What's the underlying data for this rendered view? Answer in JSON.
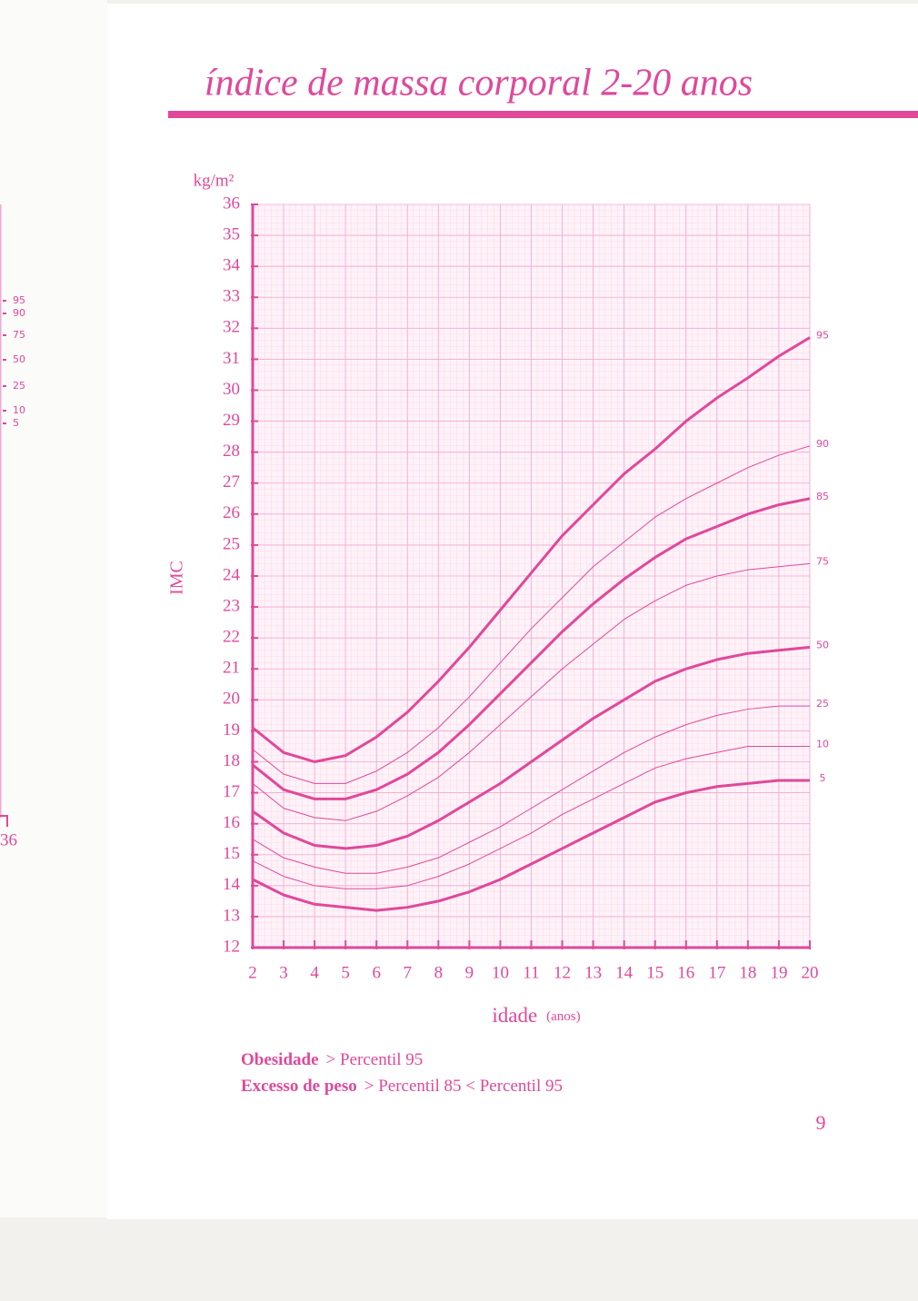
{
  "header": {
    "title": "índice de massa corporal 2-20 anos"
  },
  "left_page": {
    "labels": [
      "95",
      "90",
      "75",
      "50",
      "25",
      "10",
      "5"
    ],
    "number": "36"
  },
  "chart_data": {
    "type": "line",
    "y_unit": "kg/m²",
    "ylabel": "IMC",
    "xlabel": "idade",
    "x_unit": "(anos)",
    "x": [
      2,
      3,
      4,
      5,
      6,
      7,
      8,
      9,
      10,
      11,
      12,
      13,
      14,
      15,
      16,
      17,
      18,
      19,
      20
    ],
    "xlim": [
      2,
      20
    ],
    "xticks": [
      2,
      3,
      4,
      5,
      6,
      7,
      8,
      9,
      10,
      11,
      12,
      13,
      14,
      15,
      16,
      17,
      18,
      19,
      20
    ],
    "ylim": [
      12,
      36
    ],
    "yticks": [
      12,
      13,
      14,
      15,
      16,
      17,
      18,
      19,
      20,
      21,
      22,
      23,
      24,
      25,
      26,
      27,
      28,
      29,
      30,
      31,
      32,
      33,
      34,
      35,
      36
    ],
    "grid": true,
    "series": [
      {
        "name": "95",
        "color": "#e0489a",
        "width": 3,
        "values": [
          19.1,
          18.3,
          18.0,
          18.2,
          18.8,
          19.6,
          20.6,
          21.7,
          22.9,
          24.1,
          25.3,
          26.3,
          27.3,
          28.1,
          29.0,
          29.75,
          30.4,
          31.1,
          31.7
        ]
      },
      {
        "name": "90",
        "color": "#e0489a",
        "width": 1,
        "values": [
          18.4,
          17.6,
          17.3,
          17.3,
          17.7,
          18.3,
          19.1,
          20.1,
          21.2,
          22.3,
          23.3,
          24.3,
          25.1,
          25.9,
          26.5,
          27.0,
          27.5,
          27.9,
          28.2
        ]
      },
      {
        "name": "85",
        "color": "#e0489a",
        "width": 3,
        "values": [
          17.9,
          17.1,
          16.8,
          16.8,
          17.1,
          17.6,
          18.3,
          19.2,
          20.2,
          21.2,
          22.2,
          23.1,
          23.9,
          24.6,
          25.2,
          25.6,
          26.0,
          26.3,
          26.5
        ]
      },
      {
        "name": "75",
        "color": "#e0489a",
        "width": 1,
        "values": [
          17.3,
          16.5,
          16.2,
          16.1,
          16.4,
          16.9,
          17.5,
          18.3,
          19.2,
          20.1,
          21.0,
          21.8,
          22.6,
          23.2,
          23.7,
          24.0,
          24.2,
          24.3,
          24.4
        ]
      },
      {
        "name": "50",
        "color": "#e0489a",
        "width": 3,
        "values": [
          16.4,
          15.7,
          15.3,
          15.2,
          15.3,
          15.6,
          16.1,
          16.7,
          17.3,
          18.0,
          18.7,
          19.4,
          20.0,
          20.6,
          21.0,
          21.3,
          21.5,
          21.6,
          21.7
        ]
      },
      {
        "name": "25",
        "color": "#e0489a",
        "width": 1,
        "values": [
          15.5,
          14.9,
          14.6,
          14.4,
          14.4,
          14.6,
          14.9,
          15.4,
          15.9,
          16.5,
          17.1,
          17.7,
          18.3,
          18.8,
          19.2,
          19.5,
          19.7,
          19.8,
          19.8
        ]
      },
      {
        "name": "10",
        "color": "#e0489a",
        "width": 1,
        "values": [
          14.8,
          14.3,
          14.0,
          13.9,
          13.9,
          14.0,
          14.3,
          14.7,
          15.2,
          15.7,
          16.3,
          16.8,
          17.3,
          17.8,
          18.1,
          18.3,
          18.5,
          18.5,
          18.5
        ]
      },
      {
        "name": "5",
        "color": "#e0489a",
        "width": 3,
        "values": [
          14.2,
          13.7,
          13.4,
          13.3,
          13.2,
          13.3,
          13.5,
          13.8,
          14.2,
          14.7,
          15.2,
          15.7,
          16.2,
          16.7,
          17.0,
          17.2,
          17.3,
          17.4,
          17.4
        ]
      }
    ]
  },
  "notes": [
    {
      "term": "Obesidade",
      "text": "> Percentil 95"
    },
    {
      "term": "Excesso de peso",
      "text": "> Percentil 85 < Percentil 95"
    }
  ],
  "page_number": "9"
}
